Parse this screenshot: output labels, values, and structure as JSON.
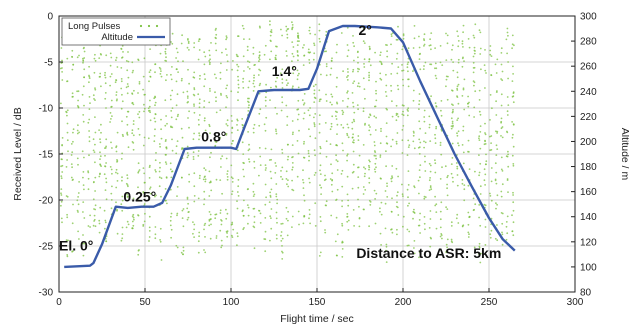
{
  "chart_data": {
    "type": "line",
    "xlabel": "Flight time / sec",
    "ylabel_left": "Received Level / dB",
    "ylabel_right": "Altitude / m",
    "xlim": [
      0,
      300
    ],
    "ylim_left": [
      -30,
      0
    ],
    "ylim_right": [
      80,
      300
    ],
    "xticks": [
      "0",
      "50",
      "100",
      "150",
      "200",
      "250",
      "300"
    ],
    "yticks_left": [
      "0",
      "-5",
      "-10",
      "-15",
      "-20",
      "-25",
      "-30"
    ],
    "yticks_right": [
      "300",
      "280",
      "260",
      "240",
      "220",
      "200",
      "180",
      "160",
      "140",
      "120",
      "100",
      "80"
    ],
    "grid": true,
    "legend_position": "top-left",
    "series": [
      {
        "name": "Long Pulses",
        "type": "scatter",
        "axis": "left",
        "color": "#7cc142",
        "description_range": [
          -27,
          -3
        ],
        "x_range": [
          0,
          265
        ]
      },
      {
        "name": "Altitude",
        "type": "line",
        "axis": "right",
        "color": "#3a5ba9",
        "x": [
          3,
          18,
          20,
          25,
          33,
          40,
          48,
          55,
          60,
          65,
          73,
          80,
          90,
          100,
          103,
          108,
          116,
          125,
          140,
          145,
          150,
          157,
          165,
          172,
          185,
          193,
          200,
          210,
          220,
          230,
          240,
          250,
          258,
          265
        ],
        "y": [
          100,
          101,
          103,
          118,
          148,
          147,
          148,
          148,
          151,
          165,
          194,
          195,
          195,
          195,
          194,
          212,
          240,
          241,
          241,
          242,
          258,
          288,
          292,
          292,
          291,
          290,
          279,
          248,
          219,
          190,
          164,
          139,
          122,
          113
        ]
      }
    ],
    "annotations": [
      {
        "text": "El. 0°",
        "x": 10,
        "y": 113
      },
      {
        "text": "0.25°",
        "x": 47,
        "y": 152
      },
      {
        "text": "0.8°",
        "x": 90,
        "y": 200
      },
      {
        "text": "1.4°",
        "x": 131,
        "y": 252
      },
      {
        "text": "2°",
        "x": 178,
        "y": 285
      },
      {
        "text": "Distance to ASR: 5km",
        "x": 215,
        "y": 107
      }
    ]
  }
}
